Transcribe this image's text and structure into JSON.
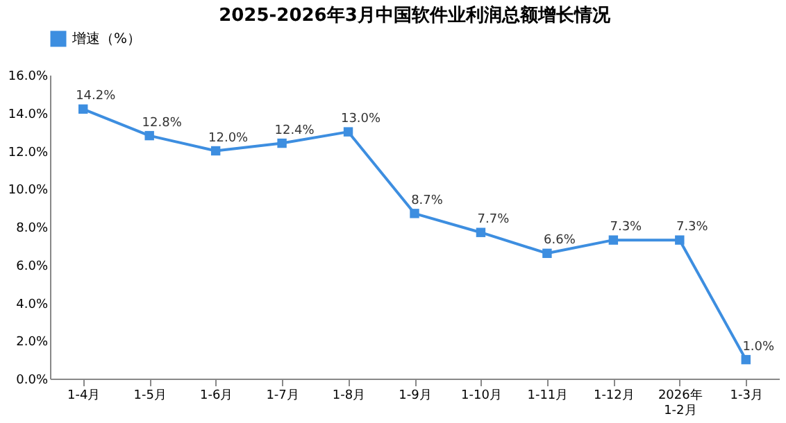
{
  "chart_data": {
    "type": "line",
    "title": "2025-2026年3月中国软件业利润总额增长情况",
    "categories": [
      "1-4月",
      "1-5月",
      "1-6月",
      "1-7月",
      "1-8月",
      "1-9月",
      "1-10月",
      "1-11月",
      "1-12月",
      "2026年\n1-2月",
      "1-3月"
    ],
    "series": [
      {
        "name": "增速（%）",
        "color": "#3d8ee0",
        "values": [
          14.2,
          12.8,
          12.0,
          12.4,
          13.0,
          8.7,
          7.7,
          6.6,
          7.3,
          7.3,
          1.0
        ],
        "value_labels": [
          "14.2%",
          "12.8%",
          "12.0%",
          "12.4%",
          "13.0%",
          "8.7%",
          "7.7%",
          "6.6%",
          "7.3%",
          "7.3%",
          "1.0%"
        ]
      }
    ],
    "ylim": [
      0,
      16
    ],
    "yticks": [
      {
        "value": 0,
        "label": "0.0%"
      },
      {
        "value": 2,
        "label": "2.0%"
      },
      {
        "value": 4,
        "label": "4.0%"
      },
      {
        "value": 6,
        "label": "6.0%"
      },
      {
        "value": 8,
        "label": "8.0%"
      },
      {
        "value": 10,
        "label": "10.0%"
      },
      {
        "value": 12,
        "label": "12.0%"
      },
      {
        "value": 14,
        "label": "14.0%"
      },
      {
        "value": 16,
        "label": "16.0%"
      }
    ],
    "grid": false,
    "legend": "top",
    "marker": "square",
    "line_style": "solid"
  }
}
